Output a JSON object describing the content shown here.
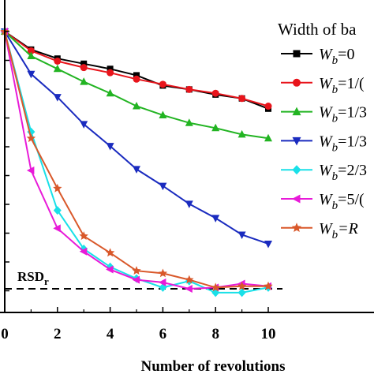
{
  "chart_data": {
    "type": "line",
    "xlabel": "Number of revolutions",
    "ylabel": "",
    "title": "",
    "xlim": [
      0,
      10.5
    ],
    "x_ticks": [
      "0",
      "2",
      "4",
      "6",
      "8",
      "10"
    ],
    "x": [
      0,
      1,
      2,
      3,
      4,
      5,
      6,
      7,
      8,
      9,
      10
    ],
    "y_unit_note": "relative scale, no printed y tick labels; 1.0 = starting level, 0 = RSDr reference line",
    "ylim": [
      -0.05,
      1.0
    ],
    "legend_title": "Width of ba",
    "legend_position": "top-right",
    "reference_line": {
      "label": "RSD",
      "label_subscript": "r",
      "value": 0
    },
    "series": [
      {
        "name": "W_b=0",
        "label_main": "W",
        "label_sub": "b",
        "label_rest": "=0",
        "color": "#000000",
        "marker": "square",
        "values": [
          1.0,
          0.93,
          0.895,
          0.875,
          0.855,
          0.83,
          0.79,
          0.775,
          0.755,
          0.74,
          0.7
        ]
      },
      {
        "name": "W_b=1/(",
        "label_main": "W",
        "label_sub": "b",
        "label_rest": "=1/(",
        "color": "#e8141b",
        "marker": "circle",
        "values": [
          1.0,
          0.925,
          0.885,
          0.86,
          0.84,
          0.815,
          0.795,
          0.775,
          0.76,
          0.74,
          0.71
        ]
      },
      {
        "name": "W_b=1/3",
        "label_main": "W",
        "label_sub": "b",
        "label_rest": "=1/3",
        "color": "#22b422",
        "marker": "triangle-up",
        "values": [
          1.0,
          0.905,
          0.855,
          0.805,
          0.76,
          0.71,
          0.675,
          0.645,
          0.625,
          0.6,
          0.585
        ]
      },
      {
        "name": "W_b=1/3",
        "label_main": "W",
        "label_sub": "b",
        "label_rest": "=1/3",
        "color": "#1a2bbf",
        "marker": "triangle-down",
        "values": [
          1.0,
          0.835,
          0.745,
          0.64,
          0.555,
          0.465,
          0.4,
          0.33,
          0.275,
          0.21,
          0.175
        ]
      },
      {
        "name": "W_b=2/3",
        "label_main": "W",
        "label_sub": "b",
        "label_rest": "=2/3",
        "color": "#19e0e8",
        "marker": "diamond",
        "values": [
          1.0,
          0.61,
          0.305,
          0.155,
          0.085,
          0.04,
          0.005,
          0.03,
          -0.015,
          -0.015,
          0.005
        ]
      },
      {
        "name": "W_b=5/(",
        "label_main": "W",
        "label_sub": "b",
        "label_rest": "=5/(",
        "color": "#e81ad8",
        "marker": "triangle-left",
        "values": [
          1.0,
          0.46,
          0.235,
          0.145,
          0.075,
          0.035,
          0.025,
          0.0,
          0.005,
          0.02,
          0.01
        ]
      },
      {
        "name": "W_b=R",
        "label_main": "W",
        "label_sub": "b",
        "label_rest": "=R",
        "color": "#d9582a",
        "marker": "star",
        "values": [
          1.0,
          0.585,
          0.39,
          0.205,
          0.14,
          0.07,
          0.06,
          0.035,
          0.005,
          0.01,
          0.01
        ]
      }
    ]
  }
}
